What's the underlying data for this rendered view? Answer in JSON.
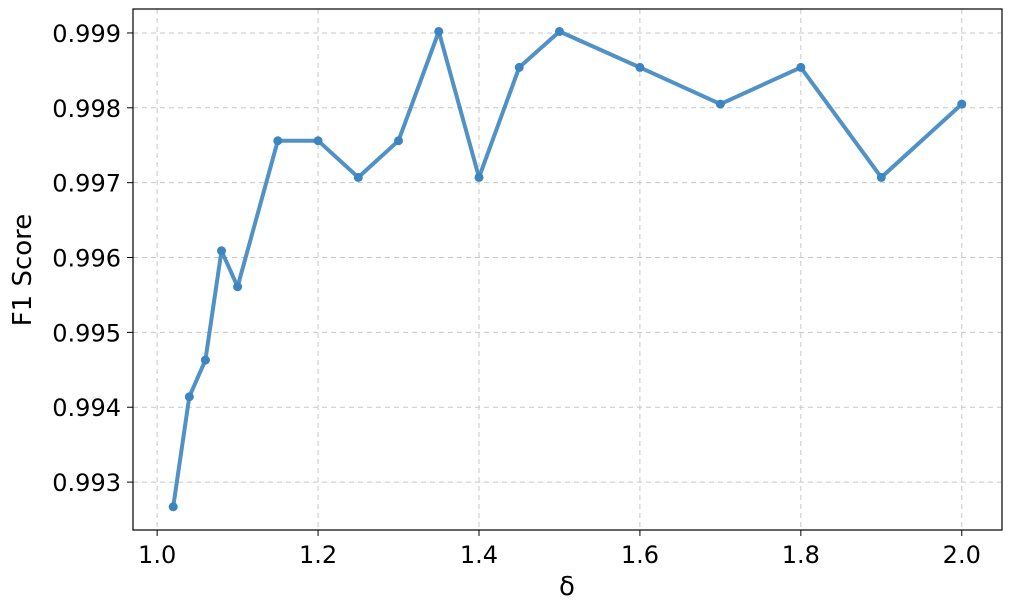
{
  "chart_data": {
    "type": "line",
    "xlabel": "δ",
    "ylabel": "F1 Score",
    "xlim": [
      0.97,
      2.05
    ],
    "ylim": [
      0.99236,
      0.99932
    ],
    "grid": true,
    "legend": "none",
    "x_ticks": [
      1.0,
      1.2,
      1.4,
      1.6,
      1.8,
      2.0
    ],
    "x_tick_labels": [
      "1.0",
      "1.2",
      "1.4",
      "1.6",
      "1.8",
      "2.0"
    ],
    "y_ticks": [
      0.993,
      0.994,
      0.995,
      0.996,
      0.997,
      0.998,
      0.999
    ],
    "y_tick_labels": [
      "0.993",
      "0.994",
      "0.995",
      "0.996",
      "0.997",
      "0.998",
      "0.999"
    ],
    "series": [
      {
        "color": "#3d85c0",
        "x": [
          1.02,
          1.04,
          1.06,
          1.08,
          1.1,
          1.15,
          1.2,
          1.25,
          1.3,
          1.35,
          1.4,
          1.45,
          1.5,
          1.6,
          1.7,
          1.8,
          1.9,
          2.0
        ],
        "values": [
          0.99267,
          0.99414,
          0.99463,
          0.99609,
          0.99561,
          0.99756,
          0.99756,
          0.99707,
          0.99756,
          0.99902,
          0.99707,
          0.99854,
          0.99902,
          0.99854,
          0.99805,
          0.99854,
          0.99707,
          0.99805
        ]
      }
    ]
  }
}
